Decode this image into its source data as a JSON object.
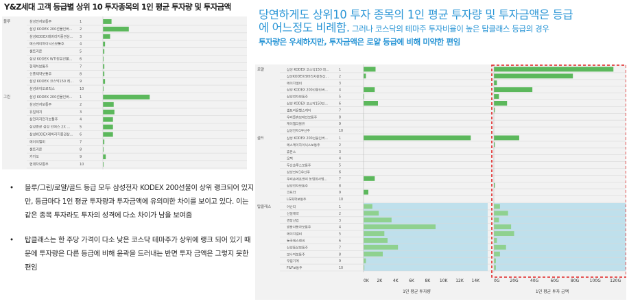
{
  "page_title": "Y&Z세대 고객 등급별 상위 10 투자종목의 1인 평균 투자량 및 투자금액",
  "headline": {
    "line1": "당연하게도  상위10 투자 종목의 1인 평균 투자량 및 투자금액은 등급",
    "line2a": "에 어느정도 비례함.",
    "line2b": " 그러나 코스닥의 테마주 투자비율이 높은 탑클래스 등급의 경우",
    "line3a": "투자량은 우세하지만, ",
    "line3b": "투자금액은",
    "line3c": " 로얄 등급에 비해 미약한 편임"
  },
  "bullets": [
    "블루/그린/로얄/골드 등급 모두 삼성전자 KODEX 200선물이 상위 랭크되어 있지만, 등급마다 1인 평균 투자량과 투자금액에 유의미한 차이를 보이고 있다. 이는 같은 종목 투자라도 투자의 성격에 다소 차이가 남을 보여줌",
    "탑클래스는 한 주당 가격이 다소 낮은 코스닥 테마주가 상위에 랭크 되어 있기 때문에 투자량은 다른 등급에 비해 윤곽을 드러내는 반면 투자 금액은 그렇지 못한 편임"
  ],
  "bullet_mark": "•",
  "colors": {
    "bar_green": "#5cb85c",
    "bar_green_light": "#8fd18f",
    "topclass_bg": "#bfe0ec",
    "highlight_border": "#e02020"
  },
  "chart_data": [
    {
      "type": "bar",
      "orientation": "horizontal",
      "groups": [
        {
          "grade": "블루",
          "items": [
            {
              "rank": "1",
              "name": "삼성전자보통주",
              "value": 1.2
            },
            {
              "rank": "2",
              "name": "삼성 KODEX 200선물인버...",
              "value": 3.6
            },
            {
              "rank": "3",
              "name": "삼성KODEX레버리지증권상...",
              "value": 1.0
            },
            {
              "rank": "4",
              "name": "에스케이하이닉스보통주",
              "value": 0.3
            },
            {
              "rank": "5",
              "name": "셀트리온",
              "value": 0.2
            },
            {
              "rank": "6",
              "name": "삼성 KODEX WTI원유선물...",
              "value": 0.1
            },
            {
              "rank": "7",
              "name": "현대차보통주",
              "value": 0.2
            },
            {
              "rank": "8",
              "name": "신풍제약보통주",
              "value": 0.2
            },
            {
              "rank": "9",
              "name": "삼성 KODEX 코스닥150 레...",
              "value": 0.3
            },
            {
              "rank": "10",
              "name": "삼성바이오로직스",
              "value": 0.1
            }
          ]
        },
        {
          "grade": "그린",
          "items": [
            {
              "rank": "1",
              "name": "삼성 KODEX 200선물인버...",
              "value": 6.5
            },
            {
              "rank": "2",
              "name": "삼성전자보통주",
              "value": 1.5
            },
            {
              "rank": "3",
              "name": "유일제지",
              "value": 1.6
            },
            {
              "rank": "4",
              "name": "삼천리자전거보통주",
              "value": 1.4
            },
            {
              "rank": "5",
              "name": "삼성중공 삼성 인버스 2X ...",
              "value": 1.4
            },
            {
              "rank": "6",
              "name": "삼성KODEX레버리지증권상...",
              "value": 1.4
            },
            {
              "rank": "7",
              "name": "에이치엘비",
              "value": 0.2
            },
            {
              "rank": "8",
              "name": "셀트리온",
              "value": 0.1
            },
            {
              "rank": "9",
              "name": "카카오",
              "value": 0.4
            },
            {
              "rank": "10",
              "name": "현대차보통주",
              "value": 0.1
            }
          ]
        }
      ]
    },
    {
      "type": "bar",
      "orientation": "horizontal",
      "left_xlabel": "1인 평균 투자량",
      "right_xlabel": "1인 평균 투자 금액",
      "left_ticks": [
        "0K",
        "2K",
        "4K",
        "6K",
        "8K",
        "10K",
        "12K",
        "14K"
      ],
      "left_xlim": [
        0,
        15000
      ],
      "right_ticks": [
        "0G",
        "20G",
        "40G",
        "60G",
        "80G",
        "100G",
        "120G"
      ],
      "right_xlim": [
        0,
        130
      ],
      "groups": [
        {
          "grade": "로얄",
          "items": [
            {
              "rank": "1",
              "name": "삼성 KODEX 코스닥150 레...",
              "qty": 1500,
              "amt": 118
            },
            {
              "rank": "2",
              "name": "삼성KODEX레버리지증권상...",
              "qty": 300,
              "amt": 78
            },
            {
              "rank": "3",
              "name": "에이치엘비",
              "qty": 0,
              "amt": 3
            },
            {
              "rank": "4",
              "name": "삼성 KODEX 200선물인버...",
              "qty": 1400,
              "amt": 38
            },
            {
              "rank": "5",
              "name": "삼성전자보통주",
              "qty": 80,
              "amt": 5
            },
            {
              "rank": "6",
              "name": "삼성 KODEX 코스닥150인...",
              "qty": 1800,
              "amt": 13
            },
            {
              "rank": "7",
              "name": "셀트리온헬스케어",
              "qty": 0,
              "amt": 1
            },
            {
              "rank": "8",
              "name": "우리들휴브레인보통주",
              "qty": 20,
              "amt": 0
            },
            {
              "rank": "9",
              "name": "케이엠더블유",
              "qty": 0,
              "amt": 0
            },
            {
              "rank": "10",
              "name": "삼성전자1우선주",
              "qty": 0,
              "amt": 0
            }
          ]
        },
        {
          "grade": "골드",
          "items": [
            {
              "rank": "1",
              "name": "삼성 KODEX 200선물인버...",
              "qty": 13400,
              "amt": 25
            },
            {
              "rank": "2",
              "name": "에스케이하이닉스보통주",
              "qty": 0,
              "amt": 1
            },
            {
              "rank": "3",
              "name": "휴온스",
              "qty": 0,
              "amt": 0
            },
            {
              "rank": "4",
              "name": "오텍",
              "qty": 0,
              "amt": 0
            },
            {
              "rank": "5",
              "name": "두산솔루스보통주",
              "qty": 0,
              "amt": 0
            },
            {
              "rank": "6",
              "name": "삼성전자1우선주",
              "qty": 0,
              "amt": 0
            },
            {
              "rank": "7",
              "name": "우리손에프앤지 농업회사법...",
              "qty": 1400,
              "amt": 0
            },
            {
              "rank": "8",
              "name": "삼성전자보통주",
              "qty": 0,
              "amt": 1
            },
            {
              "rank": "9",
              "name": "코프라",
              "qty": 600,
              "amt": 0
            },
            {
              "rank": "10",
              "name": "LG화학보통주",
              "qty": 0,
              "amt": 0
            }
          ]
        },
        {
          "grade": "탑클래스",
          "items": [
            {
              "rank": "1",
              "name": "아난티",
              "qty": 1100,
              "amt": 6
            },
            {
              "rank": "2",
              "name": "신일제약",
              "qty": 1900,
              "amt": 14
            },
            {
              "rank": "3",
              "name": "경창산업",
              "qty": 3500,
              "amt": 5
            },
            {
              "rank": "4",
              "name": "쌍용자동차보통주",
              "qty": 9000,
              "amt": 17
            },
            {
              "rank": "5",
              "name": "에이치엘비",
              "qty": 2600,
              "amt": 20
            },
            {
              "rank": "6",
              "name": "동국에스엔씨",
              "qty": 3000,
              "amt": 3
            },
            {
              "rank": "7",
              "name": "신성통상보통주",
              "qty": 4300,
              "amt": 12
            },
            {
              "rank": "8",
              "name": "모나미보통주",
              "qty": 2400,
              "amt": 6
            },
            {
              "rank": "9",
              "name": "우림기계",
              "qty": 300,
              "amt": 2
            },
            {
              "rank": "10",
              "name": "F&F보통주",
              "qty": 100,
              "amt": 2
            }
          ]
        }
      ]
    }
  ]
}
